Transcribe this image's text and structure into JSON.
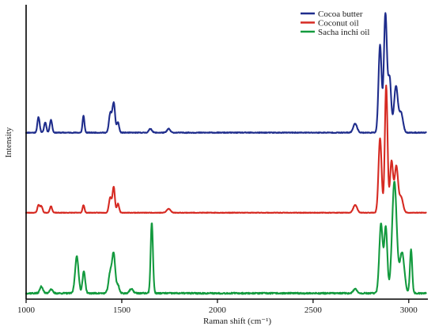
{
  "chart_data": {
    "type": "line",
    "xlabel": "Raman shift (cm⁻¹)",
    "ylabel": "Intensity",
    "xlim": [
      1000,
      3100
    ],
    "xticks": [
      1000,
      1500,
      2000,
      2500,
      3000
    ],
    "y_ticks_shown": false,
    "grid": false,
    "legend_position": "top-right",
    "units": "arbitrary intensity, traces vertically offset",
    "series": [
      {
        "name": "Cocoa butter",
        "color": "#1f2d8c",
        "offset": 0.555,
        "amp": 0.445,
        "baseline": 0.02,
        "noise": 0.006,
        "seed": 11,
        "peaks": [
          [
            1065,
            0.12,
            6
          ],
          [
            1100,
            0.08,
            6
          ],
          [
            1130,
            0.1,
            6
          ],
          [
            1300,
            0.13,
            5
          ],
          [
            1440,
            0.15,
            7
          ],
          [
            1458,
            0.23,
            7
          ],
          [
            1480,
            0.08,
            6
          ],
          [
            1650,
            0.03,
            8
          ],
          [
            1745,
            0.03,
            8
          ],
          [
            2720,
            0.07,
            10
          ],
          [
            2850,
            0.68,
            8
          ],
          [
            2878,
            0.92,
            8
          ],
          [
            2900,
            0.42,
            8
          ],
          [
            2933,
            0.36,
            10
          ],
          [
            2960,
            0.15,
            10
          ]
        ]
      },
      {
        "name": "Coconut oil",
        "color": "#d62a22",
        "offset": 0.283,
        "amp": 0.443,
        "baseline": 0.01,
        "noise": 0.004,
        "seed": 23,
        "peaks": [
          [
            1065,
            0.06,
            6
          ],
          [
            1080,
            0.05,
            6
          ],
          [
            1130,
            0.05,
            6
          ],
          [
            1300,
            0.06,
            5
          ],
          [
            1440,
            0.12,
            7
          ],
          [
            1458,
            0.2,
            6
          ],
          [
            1480,
            0.07,
            6
          ],
          [
            1745,
            0.03,
            10
          ],
          [
            2720,
            0.06,
            10
          ],
          [
            2850,
            0.58,
            8
          ],
          [
            2882,
            0.99,
            7
          ],
          [
            2910,
            0.4,
            8
          ],
          [
            2935,
            0.36,
            9
          ],
          [
            2960,
            0.12,
            10
          ]
        ]
      },
      {
        "name": "Sacha inchi oil",
        "color": "#139a3e",
        "offset": 0.0,
        "amp": 0.469,
        "baseline": 0.02,
        "noise": 0.01,
        "seed": 37,
        "peaks": [
          [
            1080,
            0.05,
            8
          ],
          [
            1130,
            0.03,
            8
          ],
          [
            1265,
            0.27,
            9
          ],
          [
            1302,
            0.16,
            7
          ],
          [
            1440,
            0.15,
            9
          ],
          [
            1458,
            0.28,
            8
          ],
          [
            1480,
            0.06,
            7
          ],
          [
            1550,
            0.03,
            10
          ],
          [
            1657,
            0.52,
            6
          ],
          [
            2720,
            0.03,
            10
          ],
          [
            2855,
            0.51,
            9
          ],
          [
            2880,
            0.48,
            8
          ],
          [
            2925,
            0.82,
            12
          ],
          [
            2965,
            0.3,
            12
          ],
          [
            3012,
            0.32,
            6
          ]
        ]
      }
    ]
  }
}
